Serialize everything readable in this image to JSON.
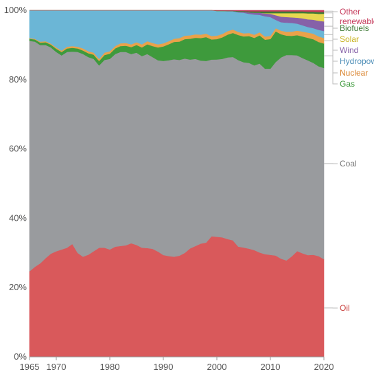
{
  "chart_data": {
    "type": "area",
    "stacked": true,
    "normalized_percent": true,
    "title": "",
    "xlabel": "",
    "ylabel": "",
    "x": [
      1965,
      1966,
      1967,
      1968,
      1969,
      1970,
      1971,
      1972,
      1973,
      1974,
      1975,
      1976,
      1977,
      1978,
      1979,
      1980,
      1981,
      1982,
      1983,
      1984,
      1985,
      1986,
      1987,
      1988,
      1989,
      1990,
      1991,
      1992,
      1993,
      1994,
      1995,
      1996,
      1997,
      1998,
      1999,
      2000,
      2001,
      2002,
      2003,
      2004,
      2005,
      2006,
      2007,
      2008,
      2009,
      2010,
      2011,
      2012,
      2013,
      2014,
      2015,
      2016,
      2017,
      2018,
      2019,
      2020
    ],
    "xlim": [
      1965,
      2020
    ],
    "ylim": [
      0,
      100
    ],
    "x_ticks": [
      "1965",
      "1970",
      "1980",
      "1990",
      "2000",
      "2010",
      "2020"
    ],
    "x_tick_values": [
      1965,
      1970,
      1980,
      1990,
      2000,
      2010,
      2020
    ],
    "y_ticks": [
      "0%",
      "20%",
      "40%",
      "60%",
      "80%",
      "100%"
    ],
    "y_tick_values": [
      0,
      20,
      40,
      60,
      80,
      100
    ],
    "grid": "horizontal",
    "legend_position": "right",
    "series": [
      {
        "name": "Oil",
        "color": "#d9595b",
        "values": [
          24.7,
          26.0,
          27.0,
          28.5,
          29.8,
          30.5,
          31.0,
          31.5,
          32.6,
          30.0,
          28.9,
          29.5,
          30.5,
          31.5,
          31.5,
          31.0,
          31.8,
          32.0,
          32.2,
          32.8,
          32.3,
          31.5,
          31.4,
          31.2,
          30.4,
          29.4,
          29.1,
          28.9,
          29.2,
          30.0,
          31.3,
          32.0,
          32.7,
          33.0,
          34.8,
          34.7,
          34.5,
          34.0,
          33.5,
          31.7,
          31.4,
          31.1,
          30.7,
          30.0,
          29.4,
          29.2,
          28.9,
          28.0,
          27.5,
          28.8,
          30.3,
          29.8,
          29.3,
          29.4,
          29.0,
          28.3
        ]
      },
      {
        "name": "Coal",
        "color": "#999b9e",
        "values": [
          66.5,
          65.0,
          63.0,
          61.5,
          59.5,
          57.5,
          56.0,
          56.5,
          55.5,
          58.0,
          58.5,
          57.0,
          55.5,
          52.6,
          54.2,
          55.0,
          55.6,
          56.0,
          55.8,
          54.6,
          55.5,
          55.3,
          56.0,
          55.3,
          55.2,
          56.0,
          56.5,
          57.0,
          56.5,
          56.1,
          54.5,
          54.0,
          52.8,
          52.4,
          51.0,
          51.2,
          51.5,
          52.4,
          52.7,
          53.6,
          53.2,
          53.4,
          53.1,
          54.3,
          53.1,
          53.3,
          55.2,
          57.4,
          58.6,
          57.6,
          56.0,
          56.2,
          56.1,
          55.3,
          54.6,
          55.3
        ]
      },
      {
        "name": "Gas",
        "color": "#3e9a3c",
        "values": [
          0.6,
          0.6,
          0.7,
          0.8,
          0.8,
          0.9,
          1.0,
          1.0,
          1.1,
          1.0,
          1.0,
          1.1,
          1.2,
          1.3,
          1.4,
          1.5,
          1.6,
          1.7,
          1.8,
          2.0,
          2.2,
          2.5,
          2.8,
          3.2,
          3.7,
          4.2,
          4.6,
          5.0,
          5.3,
          5.6,
          6.0,
          6.1,
          6.5,
          6.9,
          5.8,
          5.9,
          6.2,
          6.6,
          6.9,
          7.2,
          7.4,
          7.7,
          7.9,
          8.1,
          8.3,
          8.5,
          8.7,
          6.6,
          5.5,
          5.5,
          5.8,
          6.2,
          6.5,
          6.8,
          7.0,
          7.1
        ]
      },
      {
        "name": "Nuclear",
        "color": "#e9a24a",
        "values": [
          0.2,
          0.2,
          0.3,
          0.3,
          0.3,
          0.4,
          0.4,
          0.5,
          0.5,
          0.5,
          0.6,
          0.6,
          0.6,
          0.6,
          0.7,
          0.7,
          0.7,
          0.8,
          0.8,
          0.8,
          0.8,
          0.9,
          0.9,
          0.9,
          0.9,
          0.9,
          0.9,
          0.9,
          1.0,
          1.0,
          1.0,
          1.0,
          1.0,
          1.0,
          1.0,
          1.0,
          1.0,
          1.0,
          1.0,
          0.9,
          0.9,
          0.9,
          0.9,
          0.9,
          0.9,
          0.9,
          0.9,
          1.0,
          1.1,
          1.2,
          1.3,
          1.4,
          1.5,
          1.6,
          1.6,
          1.6
        ]
      },
      {
        "name": "Hydropower",
        "color": "#6bb6d6",
        "values": [
          8.0,
          8.2,
          9.0,
          8.9,
          9.6,
          10.7,
          11.6,
          10.5,
          10.3,
          10.5,
          11.0,
          11.8,
          12.2,
          14.0,
          12.2,
          11.8,
          10.3,
          9.5,
          9.4,
          9.8,
          9.2,
          9.8,
          8.9,
          9.4,
          9.8,
          9.5,
          8.9,
          8.2,
          8.0,
          7.3,
          7.2,
          6.9,
          7.0,
          6.7,
          7.4,
          7.1,
          6.6,
          5.7,
          5.2,
          5.6,
          5.9,
          5.5,
          5.8,
          5.0,
          5.8,
          5.4,
          2.4,
          2.4,
          2.6,
          2.5,
          2.0,
          1.8,
          1.6,
          1.6,
          1.9,
          2.0
        ]
      },
      {
        "name": "Wind",
        "color": "#8661a8",
        "values": [
          0,
          0,
          0,
          0,
          0,
          0,
          0,
          0,
          0,
          0,
          0,
          0,
          0,
          0,
          0,
          0,
          0,
          0,
          0,
          0,
          0,
          0,
          0,
          0,
          0,
          0,
          0,
          0,
          0,
          0,
          0,
          0,
          0,
          0,
          0,
          0,
          0,
          0.1,
          0.1,
          0.2,
          0.3,
          0.4,
          0.5,
          0.6,
          0.8,
          0.9,
          1.3,
          1.6,
          1.6,
          1.6,
          1.7,
          2.0,
          2.2,
          2.4,
          2.6,
          2.8
        ]
      },
      {
        "name": "Solar",
        "color": "#e7d750",
        "values": [
          0,
          0,
          0,
          0,
          0,
          0,
          0,
          0,
          0,
          0,
          0,
          0,
          0,
          0,
          0,
          0,
          0,
          0,
          0,
          0,
          0,
          0,
          0,
          0,
          0,
          0,
          0,
          0,
          0,
          0,
          0,
          0,
          0,
          0,
          0,
          0,
          0,
          0,
          0,
          0,
          0,
          0,
          0,
          0,
          0.1,
          0.2,
          0.6,
          1.0,
          1.1,
          1.2,
          1.3,
          1.5,
          1.7,
          1.8,
          2.0,
          2.2
        ]
      },
      {
        "name": "Biofuels",
        "color": "#3f7a37",
        "values": [
          0,
          0,
          0,
          0,
          0,
          0,
          0,
          0,
          0,
          0,
          0,
          0,
          0,
          0,
          0,
          0,
          0,
          0,
          0,
          0,
          0,
          0,
          0,
          0,
          0,
          0,
          0,
          0,
          0,
          0,
          0,
          0,
          0,
          0,
          0,
          0.1,
          0.1,
          0.1,
          0.1,
          0.2,
          0.2,
          0.3,
          0.4,
          0.4,
          0.5,
          0.5,
          0.5,
          0.5,
          0.5,
          0.5,
          0.5,
          0.5,
          0.5,
          0.5,
          0.5,
          0.5
        ]
      },
      {
        "name": "Other renewables",
        "color": "#c53a5b",
        "values": [
          0,
          0,
          0,
          0,
          0,
          0,
          0,
          0,
          0,
          0,
          0,
          0,
          0,
          0,
          0,
          0,
          0,
          0,
          0,
          0,
          0,
          0,
          0,
          0,
          0,
          0,
          0,
          0,
          0,
          0,
          0,
          0,
          0,
          0,
          0,
          0.1,
          0.1,
          0.1,
          0.1,
          0.2,
          0.2,
          0.3,
          0.3,
          0.3,
          0.3,
          0.3,
          0.3,
          0.3,
          0.3,
          0.3,
          0.3,
          0.3,
          0.4,
          0.4,
          0.5,
          0.5
        ]
      }
    ],
    "legend": [
      {
        "lines": [
          "Other",
          "renewables"
        ],
        "series": "Other renewables",
        "color": "#c53a5b"
      },
      {
        "lines": [
          "Biofuels"
        ],
        "series": "Biofuels",
        "color": "#3f7a37"
      },
      {
        "lines": [
          "Solar"
        ],
        "series": "Solar",
        "color": "#c8b220"
      },
      {
        "lines": [
          "Wind"
        ],
        "series": "Wind",
        "color": "#8661a8"
      },
      {
        "lines": [
          "Hydropower"
        ],
        "series": "Hydropower",
        "color": "#4f8fb8"
      },
      {
        "lines": [
          "Nuclear"
        ],
        "series": "Nuclear",
        "color": "#d9822b"
      },
      {
        "lines": [
          "Gas"
        ],
        "series": "Gas",
        "color": "#3e9a3c"
      },
      {
        "lines": [
          "Coal"
        ],
        "series": "Coal",
        "color": "#777777"
      },
      {
        "lines": [
          "Oil"
        ],
        "series": "Oil",
        "color": "#c9423f"
      }
    ]
  }
}
